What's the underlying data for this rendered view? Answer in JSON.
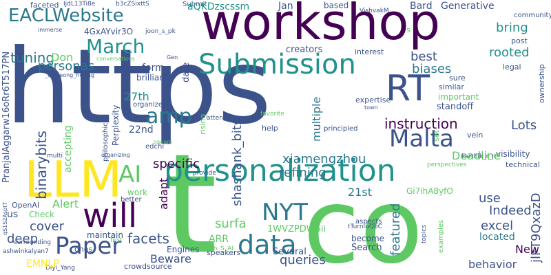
{
  "words": [
    {
      "text": "https",
      "color": "#3b528b",
      "size": 150,
      "vertical": false
    },
    {
      "text": "t",
      "color": "#5ec962",
      "size": 200,
      "vertical": false
    },
    {
      "text": "co",
      "color": "#5ec962",
      "size": 150,
      "vertical": false
    },
    {
      "text": "workshop",
      "color": "#440154",
      "size": 72,
      "vertical": false
    },
    {
      "text": "personalization",
      "color": "#21918c",
      "size": 44,
      "vertical": false
    },
    {
      "text": "Submission",
      "color": "#21918c",
      "size": 40,
      "vertical": false
    },
    {
      "text": "LLM",
      "color": "#fde725",
      "size": 72,
      "vertical": false
    },
    {
      "text": "RT",
      "color": "#3b528b",
      "size": 52,
      "vertical": false
    },
    {
      "text": "will",
      "color": "#440154",
      "size": 48,
      "vertical": false
    },
    {
      "text": "data",
      "color": "#2a788e",
      "size": 38,
      "vertical": false
    },
    {
      "text": "Paper",
      "color": "#3b528b",
      "size": 34,
      "vertical": false
    },
    {
      "text": "Malta",
      "color": "#3b528b",
      "size": 34,
      "vertical": false
    },
    {
      "text": "NYT",
      "color": "#2a788e",
      "size": 34,
      "vertical": false
    },
    {
      "text": "EACLWebsite",
      "color": "#2a788e",
      "size": 26,
      "vertical": false
    },
    {
      "text": "AI",
      "color": "#5ec962",
      "size": 34,
      "vertical": false
    },
    {
      "text": "amp",
      "color": "#2a788e",
      "size": 30,
      "vertical": false
    },
    {
      "text": "March",
      "color": "#21918c",
      "size": 28,
      "vertical": false
    },
    {
      "text": "instruction",
      "color": "#440154",
      "size": 20,
      "vertical": false
    },
    {
      "text": "xiamengzhou",
      "color": "#2a788e",
      "size": 18,
      "vertical": false
    },
    {
      "text": "shashank_bits",
      "color": "#3b528b",
      "size": 18,
      "vertical": true
    },
    {
      "text": "binarybits",
      "color": "#3b528b",
      "size": 20,
      "vertical": true
    },
    {
      "text": "personas",
      "color": "#2a788e",
      "size": 18,
      "vertical": false
    },
    {
      "text": "tuning",
      "color": "#2a788e",
      "size": 20,
      "vertical": false
    },
    {
      "text": "Submit",
      "color": "#3b528b",
      "size": 10,
      "vertical": false
    },
    {
      "text": "Don",
      "color": "#5ec962",
      "size": 16,
      "vertical": false
    },
    {
      "text": "bring",
      "color": "#21918c",
      "size": 18,
      "vertical": false
    },
    {
      "text": "best",
      "color": "#3b528b",
      "size": 18,
      "vertical": false
    },
    {
      "text": "biases",
      "color": "#2a788e",
      "size": 18,
      "vertical": false
    },
    {
      "text": "rooted",
      "color": "#21918c",
      "size": 18,
      "vertical": false
    },
    {
      "text": "Generative",
      "color": "#3b528b",
      "size": 14,
      "vertical": false
    },
    {
      "text": "Bard",
      "color": "#3b528b",
      "size": 14,
      "vertical": false
    },
    {
      "text": "based",
      "color": "#3b528b",
      "size": 12,
      "vertical": false
    },
    {
      "text": "Jan",
      "color": "#3b528b",
      "size": 14,
      "vertical": false
    },
    {
      "text": "aQKDzscssm",
      "color": "#21918c",
      "size": 14,
      "vertical": false
    },
    {
      "text": "VishvakM",
      "color": "#3b528b",
      "size": 9,
      "vertical": false
    },
    {
      "text": "4GxAYvir3O",
      "color": "#3b528b",
      "size": 12,
      "vertical": false
    },
    {
      "text": "joon_s_pk",
      "color": "#3b528b",
      "size": 9,
      "vertical": false
    },
    {
      "text": "IjdL13Ti8e",
      "color": "#3b528b",
      "size": 9,
      "vertical": false
    },
    {
      "text": "b3cZSixttS",
      "color": "#3b528b",
      "size": 9,
      "vertical": false
    },
    {
      "text": "creators",
      "color": "#3b528b",
      "size": 13,
      "vertical": false
    },
    {
      "text": "interest",
      "color": "#3b528b",
      "size": 11,
      "vertical": false
    },
    {
      "text": "community",
      "color": "#3b528b",
      "size": 10,
      "vertical": false
    },
    {
      "text": "post",
      "color": "#3b528b",
      "size": 11,
      "vertical": false
    },
    {
      "text": "New",
      "color": "#440154",
      "size": 16,
      "vertical": false
    },
    {
      "text": "legal",
      "color": "#3b528b",
      "size": 11,
      "vertical": false
    },
    {
      "text": "ownership",
      "color": "#3b528b",
      "size": 11,
      "vertical": true
    },
    {
      "text": "sure",
      "color": "#3b528b",
      "size": 11,
      "vertical": false
    },
    {
      "text": "similar",
      "color": "#3b528b",
      "size": 11,
      "vertical": false
    },
    {
      "text": "important",
      "color": "#5ec962",
      "size": 12,
      "vertical": false
    },
    {
      "text": "standoff",
      "color": "#3b528b",
      "size": 13,
      "vertical": false
    },
    {
      "text": "Lots",
      "color": "#3b528b",
      "size": 18,
      "vertical": false
    },
    {
      "text": "visibility",
      "color": "#3b528b",
      "size": 12,
      "vertical": false
    },
    {
      "text": "Deadline",
      "color": "#5ec962",
      "size": 16,
      "vertical": false
    },
    {
      "text": "technical",
      "color": "#3b528b",
      "size": 11,
      "vertical": false
    },
    {
      "text": "perspectives",
      "color": "#5ec962",
      "size": 9,
      "vertical": false
    },
    {
      "text": "karthik_r_n",
      "color": "#3b528b",
      "size": 9,
      "vertical": false
    },
    {
      "text": "vein",
      "color": "#3b528b",
      "size": 11,
      "vertical": false
    },
    {
      "text": "set",
      "color": "#5ec962",
      "size": 11,
      "vertical": true
    },
    {
      "text": "expertise",
      "color": "#3b528b",
      "size": 11,
      "vertical": false
    },
    {
      "text": "town",
      "color": "#3b528b",
      "size": 8,
      "vertical": false
    },
    {
      "text": "favorite",
      "color": "#5ec962",
      "size": 9,
      "vertical": false
    },
    {
      "text": "help",
      "color": "#3b528b",
      "size": 11,
      "vertical": false
    },
    {
      "text": "principled",
      "color": "#3b528b",
      "size": 10,
      "vertical": false
    },
    {
      "text": "multiple",
      "color": "#2a788e",
      "size": 16,
      "vertical": true
    },
    {
      "text": "featured",
      "color": "#2a788e",
      "size": 18,
      "vertical": true
    },
    {
      "text": "refining",
      "color": "#2a788e",
      "size": 18,
      "vertical": false
    },
    {
      "text": "21st",
      "color": "#2a788e",
      "size": 16,
      "vertical": false
    },
    {
      "text": "Gi7ihA8yfO",
      "color": "#5ec962",
      "size": 12,
      "vertical": false
    },
    {
      "text": "use",
      "color": "#3b528b",
      "size": 18,
      "vertical": false
    },
    {
      "text": "Indeed",
      "color": "#3b528b",
      "size": 18,
      "vertical": false
    },
    {
      "text": "excel",
      "color": "#3b528b",
      "size": 18,
      "vertical": false
    },
    {
      "text": "located",
      "color": "#2a788e",
      "size": 14,
      "vertical": false
    },
    {
      "text": "behavior",
      "color": "#3b528b",
      "size": 16,
      "vertical": false
    },
    {
      "text": "jlFT9QxazD",
      "color": "#3b528b",
      "size": 18,
      "vertical": true
    },
    {
      "text": "examples",
      "color": "#5ec962",
      "size": 10,
      "vertical": true
    },
    {
      "text": "topics",
      "color": "#3b528b",
      "size": 9,
      "vertical": true
    },
    {
      "text": "aspects",
      "color": "#3b528b",
      "size": 10,
      "vertical": false
    },
    {
      "text": "tTurnluQbC",
      "color": "#3b528b",
      "size": 9,
      "vertical": false
    },
    {
      "text": "become",
      "color": "#3b528b",
      "size": 12,
      "vertical": false
    },
    {
      "text": "Search",
      "color": "#3b528b",
      "size": 13,
      "vertical": false
    },
    {
      "text": "Several",
      "color": "#3b528b",
      "size": 13,
      "vertical": false
    },
    {
      "text": "1WVZPDWSii",
      "color": "#5ec962",
      "size": 13,
      "vertical": false
    },
    {
      "text": "queries",
      "color": "#3b528b",
      "size": 18,
      "vertical": false
    },
    {
      "text": "surfa",
      "color": "#5ec962",
      "size": 18,
      "vertical": false
    },
    {
      "text": "ARR",
      "color": "#5ec962",
      "size": 14,
      "vertical": false
    },
    {
      "text": "speakers",
      "color": "#3b528b",
      "size": 11,
      "vertical": false
    },
    {
      "text": "Ashish_S_AI",
      "color": "#5ec962",
      "size": 9,
      "vertical": false
    },
    {
      "text": "facets",
      "color": "#3b528b",
      "size": 20,
      "vertical": false
    },
    {
      "text": "Beware",
      "color": "#3b528b",
      "size": 16,
      "vertical": false
    },
    {
      "text": "Engines",
      "color": "#3b528b",
      "size": 12,
      "vertical": false
    },
    {
      "text": "crowdsource",
      "color": "#3b528b",
      "size": 11,
      "vertical": false
    },
    {
      "text": "Diyi_Yang",
      "color": "#3b528b",
      "size": 9,
      "vertical": false
    },
    {
      "text": "first",
      "color": "#5ec962",
      "size": 9,
      "vertical": false
    },
    {
      "text": "ones",
      "color": "#3b528b",
      "size": 11,
      "vertical": false
    },
    {
      "text": "maintain",
      "color": "#3b528b",
      "size": 12,
      "vertical": false
    },
    {
      "text": "surrounding",
      "color": "#3b528b",
      "size": 9,
      "vertical": false
    },
    {
      "text": "ashwinkalyan7",
      "color": "#3b528b",
      "size": 9,
      "vertical": false
    },
    {
      "text": "qS1S2AsptT",
      "color": "#3b528b",
      "size": 8,
      "vertical": true
    },
    {
      "text": "EMNLP",
      "color": "#fde725",
      "size": 14,
      "vertical": false
    },
    {
      "text": "deep",
      "color": "#3b528b",
      "size": 18,
      "vertical": false
    },
    {
      "text": "cover",
      "color": "#3b528b",
      "size": 18,
      "vertical": false
    },
    {
      "text": "us",
      "color": "#3b528b",
      "size": 14,
      "vertical": false
    },
    {
      "text": "Check",
      "color": "#5ec962",
      "size": 12,
      "vertical": false
    },
    {
      "text": "OpenAI",
      "color": "#3b528b",
      "size": 11,
      "vertical": false
    },
    {
      "text": "Alert",
      "color": "#5ec962",
      "size": 16,
      "vertical": false
    },
    {
      "text": "better",
      "color": "#3b528b",
      "size": 10,
      "vertical": false
    },
    {
      "text": "work",
      "color": "#5ec962",
      "size": 12,
      "vertical": false
    },
    {
      "text": "adapt",
      "color": "#440154",
      "size": 16,
      "vertical": true
    },
    {
      "text": "22nd",
      "color": "#3b528b",
      "size": 14,
      "vertical": false
    },
    {
      "text": "specific",
      "color": "#440154",
      "size": 18,
      "vertical": false
    },
    {
      "text": "edchi",
      "color": "#3b528b",
      "size": 10,
      "vertical": false
    },
    {
      "text": "organizing",
      "color": "#3b528b",
      "size": 8,
      "vertical": false
    },
    {
      "text": "provide",
      "color": "#3b528b",
      "size": 9,
      "vertical": false
    },
    {
      "text": "multi",
      "color": "#3b528b",
      "size": 9,
      "vertical": false
    },
    {
      "text": "square",
      "color": "#5ec962",
      "size": 8,
      "vertical": false
    },
    {
      "text": "PranjalAggarw16oRr6T517PN",
      "color": "#3b528b",
      "size": 13,
      "vertical": true
    },
    {
      "text": "faceted",
      "color": "#3b528b",
      "size": 11,
      "vertical": false
    },
    {
      "text": "immerse",
      "color": "#3b528b",
      "size": 8,
      "vertical": false
    },
    {
      "text": "_eunjeong_hwang",
      "color": "#3b528b",
      "size": 8,
      "vertical": false
    },
    {
      "text": "conversations",
      "color": "#5ec962",
      "size": 8,
      "vertical": false
    },
    {
      "text": "Gen",
      "color": "#3b528b",
      "size": 8,
      "vertical": false
    },
    {
      "text": "brilliant",
      "color": "#3b528b",
      "size": 12,
      "vertical": false
    },
    {
      "text": "form",
      "color": "#3b528b",
      "size": 14,
      "vertical": false
    },
    {
      "text": "date",
      "color": "#3b528b",
      "size": 13,
      "vertical": true
    },
    {
      "text": "27th",
      "color": "#21918c",
      "size": 16,
      "vertical": false
    },
    {
      "text": "organizers",
      "color": "#3b528b",
      "size": 10,
      "vertical": false
    },
    {
      "text": "philosophical",
      "color": "#3b528b",
      "size": 10,
      "vertical": true
    },
    {
      "text": "Perplexity",
      "color": "#3b528b",
      "size": 12,
      "vertical": true
    },
    {
      "text": "accepting",
      "color": "#5ec962",
      "size": 14,
      "vertical": true
    },
    {
      "text": "rising",
      "color": "#5ec962",
      "size": 11,
      "vertical": true
    },
    {
      "text": "attend",
      "color": "#3b528b",
      "size": 9,
      "vertical": false
    },
    {
      "text": "s",
      "color": "#5ec962",
      "size": 11,
      "vertical": false
    }
  ]
}
